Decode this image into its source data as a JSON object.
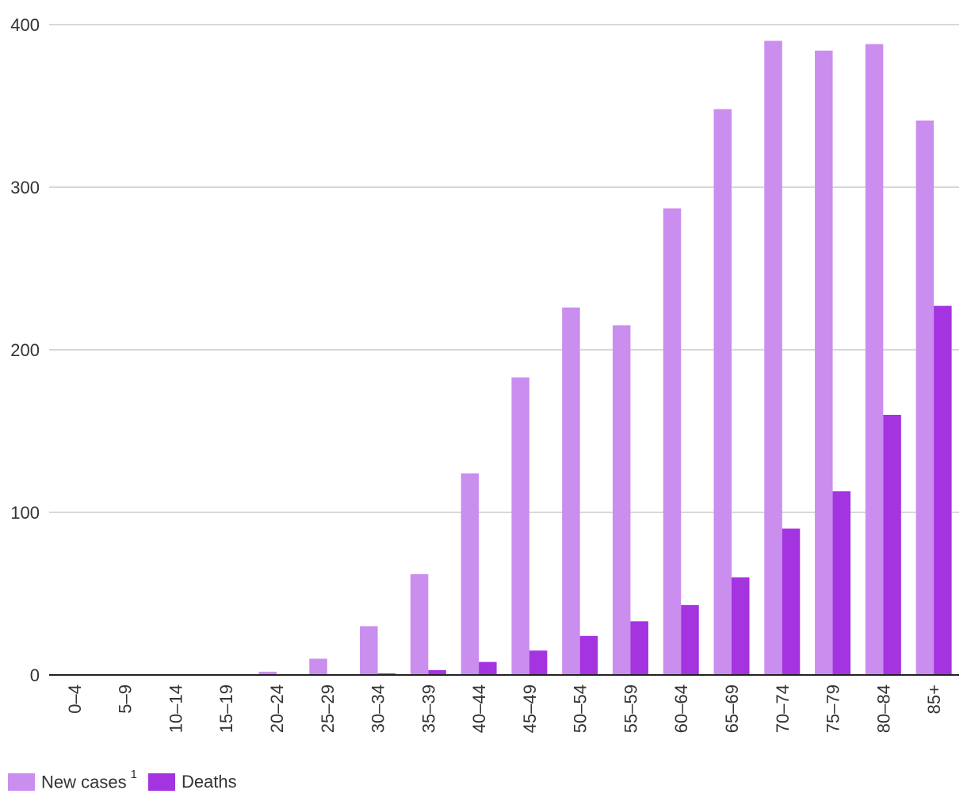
{
  "chart_data": {
    "type": "bar",
    "categories": [
      "0–4",
      "5–9",
      "10–14",
      "15–19",
      "20–24",
      "25–29",
      "30–34",
      "35–39",
      "40–44",
      "45–49",
      "50–54",
      "55–59",
      "60–64",
      "65–69",
      "70–74",
      "75–79",
      "80–84",
      "85+"
    ],
    "series": [
      {
        "name": "New cases",
        "footnote": "1",
        "color": "#ca8eee",
        "values": [
          0,
          0,
          0,
          0,
          2,
          10,
          30,
          62,
          124,
          183,
          226,
          215,
          287,
          348,
          390,
          384,
          388,
          341
        ]
      },
      {
        "name": "Deaths",
        "color": "#a433e0",
        "values": [
          0,
          0,
          0,
          0,
          0,
          0,
          1,
          3,
          8,
          15,
          24,
          33,
          43,
          60,
          90,
          113,
          160,
          227
        ]
      }
    ],
    "yticks": [
      0,
      100,
      200,
      300,
      400
    ],
    "ylim": [
      0,
      400
    ],
    "grid": true,
    "legend_position": "bottom-left"
  }
}
